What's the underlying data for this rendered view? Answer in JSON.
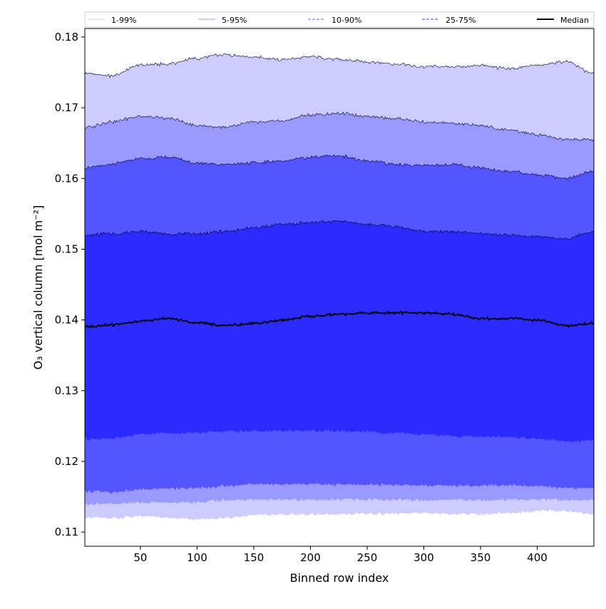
{
  "chart_data": {
    "type": "area",
    "title": "",
    "xlabel": "Binned row index",
    "ylabel": "O₃ vertical column [mol m⁻²]",
    "xlim": [
      1,
      450
    ],
    "ylim": [
      0.108,
      0.1812
    ],
    "xticks": [
      50,
      100,
      150,
      200,
      250,
      300,
      350,
      400
    ],
    "yticks": [
      0.11,
      0.12,
      0.13,
      0.14,
      0.15,
      0.16,
      0.17,
      0.18
    ],
    "xtick_labels": [
      "50",
      "100",
      "150",
      "200",
      "250",
      "300",
      "350",
      "400"
    ],
    "ytick_labels": [
      "0.11",
      "0.12",
      "0.13",
      "0.14",
      "0.15",
      "0.16",
      "0.17",
      "0.18"
    ],
    "grid": false,
    "legend_position": "top",
    "legend": [
      {
        "label": "1-99%",
        "color": "#ccccff",
        "style": "solid"
      },
      {
        "label": "5-95%",
        "color": "#9999ff",
        "style": "solid"
      },
      {
        "label": "10-90%",
        "color": "#6666ff",
        "style": "dashed"
      },
      {
        "label": "25-75%",
        "color": "#3333ff",
        "style": "dashed"
      },
      {
        "label": "Median",
        "color": "#000000",
        "style": "solid"
      }
    ],
    "x": [
      1,
      25,
      50,
      75,
      100,
      125,
      150,
      175,
      200,
      225,
      250,
      275,
      300,
      325,
      350,
      375,
      400,
      425,
      450
    ],
    "bands": [
      {
        "name": "1-99%",
        "color": "#ccccff",
        "upper": [
          0.1748,
          0.1745,
          0.176,
          0.1762,
          0.177,
          0.1775,
          0.1772,
          0.1768,
          0.1772,
          0.1768,
          0.1765,
          0.1762,
          0.1758,
          0.1758,
          0.176,
          0.1755,
          0.176,
          0.1765,
          0.1748
        ],
        "lower": [
          0.112,
          0.112,
          0.1122,
          0.112,
          0.1118,
          0.112,
          0.1124,
          0.1125,
          0.1125,
          0.1125,
          0.1126,
          0.1126,
          0.1126,
          0.1126,
          0.1125,
          0.1127,
          0.113,
          0.113,
          0.1125
        ]
      },
      {
        "name": "5-95%",
        "color": "#9999ff",
        "upper": [
          0.1672,
          0.168,
          0.1688,
          0.1685,
          0.1675,
          0.1672,
          0.168,
          0.1682,
          0.169,
          0.1692,
          0.1688,
          0.1685,
          0.168,
          0.1678,
          0.1675,
          0.1668,
          0.1662,
          0.1655,
          0.1655
        ],
        "lower": [
          0.114,
          0.114,
          0.1142,
          0.1142,
          0.1142,
          0.1145,
          0.1146,
          0.1146,
          0.1146,
          0.1146,
          0.1146,
          0.1146,
          0.1145,
          0.1146,
          0.1145,
          0.1146,
          0.1146,
          0.1145,
          0.1145
        ]
      },
      {
        "name": "10-90%",
        "color": "#5555ff",
        "upper": [
          0.1615,
          0.162,
          0.1628,
          0.163,
          0.1622,
          0.162,
          0.1622,
          0.1625,
          0.163,
          0.1632,
          0.1625,
          0.162,
          0.1618,
          0.162,
          0.1615,
          0.161,
          0.1605,
          0.16,
          0.161
        ],
        "lower": [
          0.1158,
          0.1156,
          0.116,
          0.1162,
          0.1162,
          0.1165,
          0.1168,
          0.1168,
          0.1168,
          0.1167,
          0.1167,
          0.1167,
          0.1166,
          0.1166,
          0.1166,
          0.1166,
          0.1165,
          0.1162,
          0.1162
        ]
      },
      {
        "name": "25-75%",
        "color": "#2b2bff",
        "upper": [
          0.152,
          0.1522,
          0.1525,
          0.1522,
          0.1522,
          0.1525,
          0.153,
          0.1535,
          0.1538,
          0.154,
          0.1535,
          0.1532,
          0.1525,
          0.1525,
          0.1522,
          0.152,
          0.1518,
          0.1515,
          0.1525
        ],
        "lower": [
          0.1232,
          0.1232,
          0.1238,
          0.124,
          0.124,
          0.1242,
          0.1243,
          0.1243,
          0.1243,
          0.1243,
          0.1242,
          0.124,
          0.1238,
          0.1236,
          0.1235,
          0.1234,
          0.1232,
          0.1228,
          0.123
        ]
      }
    ],
    "series": [
      {
        "name": "Median",
        "color": "#000000",
        "values": [
          0.139,
          0.1393,
          0.1398,
          0.1402,
          0.1396,
          0.1392,
          0.1395,
          0.14,
          0.1405,
          0.1408,
          0.141,
          0.141,
          0.141,
          0.1408,
          0.1402,
          0.1402,
          0.14,
          0.1392,
          0.1395
        ]
      }
    ]
  }
}
